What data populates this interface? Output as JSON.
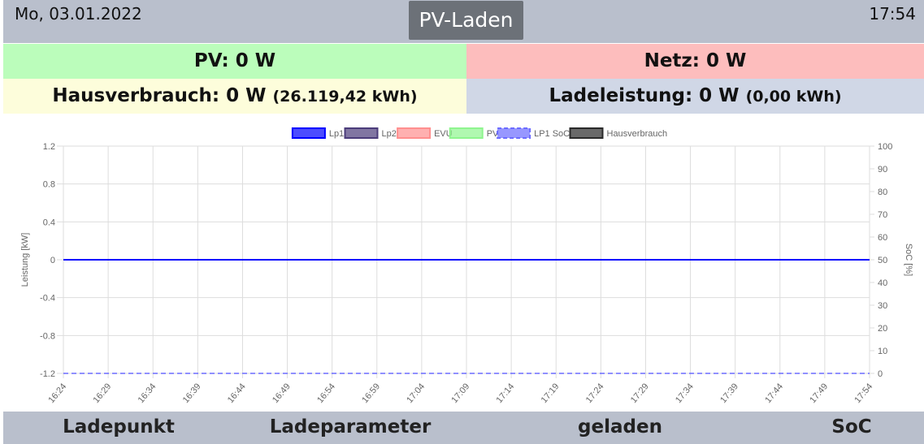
{
  "header": {
    "date": "Mo, 03.01.2022",
    "mode": "PV-Laden",
    "time": "17:54"
  },
  "tiles": [
    {
      "label": "PV: 0 W"
    },
    {
      "label": "Netz: 0 W"
    },
    {
      "label": "Hausverbrauch: 0 W",
      "detail": "(26.119,42 kWh)"
    },
    {
      "label": "Ladeleistung: 0 W",
      "detail": "(0,00 kWh)"
    }
  ],
  "chart_data": {
    "type": "line",
    "y_label": "Leistung [kW]",
    "y2_label": "SoC [%]",
    "categories": [
      "16:24",
      "16:29",
      "16:34",
      "16:39",
      "16:44",
      "16:49",
      "16:54",
      "16:59",
      "17:04",
      "17:09",
      "17:14",
      "17:19",
      "17:24",
      "17:29",
      "17:34",
      "17:39",
      "17:44",
      "17:49",
      "17:54"
    ],
    "ylim": [
      -1.2,
      1.2
    ],
    "yticks": [
      -1.2,
      -0.8,
      -0.4,
      0,
      0.4,
      0.8,
      1.2
    ],
    "y2lim": [
      0,
      100
    ],
    "y2ticks": [
      0,
      10,
      20,
      30,
      40,
      50,
      60,
      70,
      80,
      90,
      100
    ],
    "grid": true,
    "series": [
      {
        "name": "Lp1",
        "color": "#0000ff",
        "values": [
          0,
          0,
          0,
          0,
          0,
          0,
          0,
          0,
          0,
          0,
          0,
          0,
          0,
          0,
          0,
          0,
          0,
          0,
          0
        ]
      },
      {
        "name": "Lp2",
        "color": "#4b3c7a",
        "values": [
          0,
          0,
          0,
          0,
          0,
          0,
          0,
          0,
          0,
          0,
          0,
          0,
          0,
          0,
          0,
          0,
          0,
          0,
          0
        ]
      },
      {
        "name": "EVU",
        "color": "#ff8f8f",
        "values": [
          0,
          0,
          0,
          0,
          0,
          0,
          0,
          0,
          0,
          0,
          0,
          0,
          0,
          0,
          0,
          0,
          0,
          0,
          0
        ]
      },
      {
        "name": "PV",
        "color": "#8ff58f",
        "values": [
          0,
          0,
          0,
          0,
          0,
          0,
          0,
          0,
          0,
          0,
          0,
          0,
          0,
          0,
          0,
          0,
          0,
          0,
          0
        ]
      },
      {
        "name": "LP1 SoC",
        "color": "#6b6bff",
        "axis": "y2",
        "dashed": true,
        "values": [
          0,
          0,
          0,
          0,
          0,
          0,
          0,
          0,
          0,
          0,
          0,
          0,
          0,
          0,
          0,
          0,
          0,
          0,
          0
        ]
      },
      {
        "name": "Hausverbrauch",
        "color": "#2a2a2a",
        "values": [
          0,
          0,
          0,
          0,
          0,
          0,
          0,
          0,
          0,
          0,
          0,
          0,
          0,
          0,
          0,
          0,
          0,
          0,
          0
        ]
      }
    ]
  },
  "table_header": [
    "Ladepunkt",
    "Ladeparameter",
    "geladen",
    "SoC"
  ]
}
